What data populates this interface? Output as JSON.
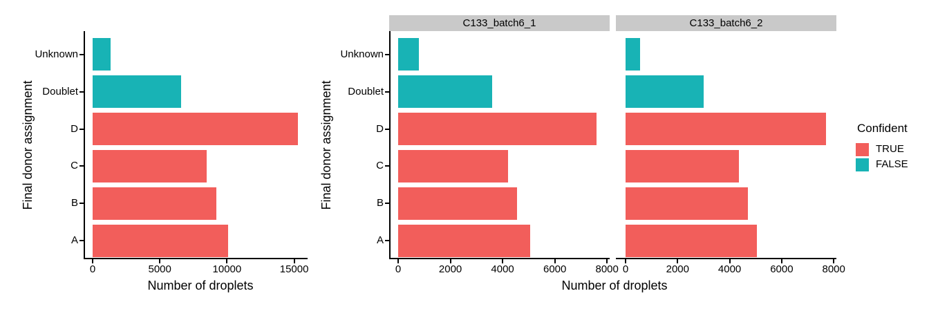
{
  "figure": {
    "background": "#FFFFFF",
    "axis_color": "#000000",
    "strip_bg": "#C9C9C9",
    "xlabel": "Number of droplets",
    "ylabel": "Final donor assignment"
  },
  "legend": {
    "title": "Confident",
    "entries": [
      {
        "label": "TRUE",
        "color": "#F25E5B"
      },
      {
        "label": "FALSE",
        "color": "#18B3B5"
      }
    ]
  },
  "colors": {
    "TRUE": "#F25E5B",
    "FALSE": "#18B3B5"
  },
  "chart_data": [
    {
      "type": "bar",
      "orientation": "horizontal",
      "facet": null,
      "categories": [
        "Unknown",
        "Doublet",
        "D",
        "C",
        "B",
        "A"
      ],
      "values": [
        1350,
        6600,
        15300,
        8500,
        9200,
        10100
      ],
      "confident": [
        "FALSE",
        "FALSE",
        "TRUE",
        "TRUE",
        "TRUE",
        "TRUE"
      ],
      "xlabel": "Number of droplets",
      "ylabel": "Final donor assignment",
      "xticks": [
        0,
        5000,
        10000,
        15000
      ],
      "xlim": [
        0,
        16000
      ],
      "grid": false,
      "legend_position": "right"
    },
    {
      "type": "bar",
      "orientation": "horizontal",
      "facet": "C133_batch6_1",
      "categories": [
        "Unknown",
        "Doublet",
        "D",
        "C",
        "B",
        "A"
      ],
      "values": [
        800,
        3600,
        7600,
        4200,
        4550,
        5050
      ],
      "confident": [
        "FALSE",
        "FALSE",
        "TRUE",
        "TRUE",
        "TRUE",
        "TRUE"
      ],
      "xlabel": "Number of droplets",
      "ylabel": "Final donor assignment",
      "xticks": [
        0,
        2000,
        4000,
        6000,
        8000
      ],
      "xlim": [
        0,
        8100
      ],
      "grid": false,
      "legend_position": "right"
    },
    {
      "type": "bar",
      "orientation": "horizontal",
      "facet": "C133_batch6_2",
      "categories": [
        "Unknown",
        "Doublet",
        "D",
        "C",
        "B",
        "A"
      ],
      "values": [
        550,
        3000,
        7700,
        4350,
        4700,
        5050
      ],
      "confident": [
        "FALSE",
        "FALSE",
        "TRUE",
        "TRUE",
        "TRUE",
        "TRUE"
      ],
      "xlabel": "Number of droplets",
      "ylabel": "Final donor assignment",
      "xticks": [
        0,
        2000,
        4000,
        6000,
        8000
      ],
      "xlim": [
        0,
        8100
      ],
      "grid": false,
      "legend_position": "right"
    }
  ]
}
